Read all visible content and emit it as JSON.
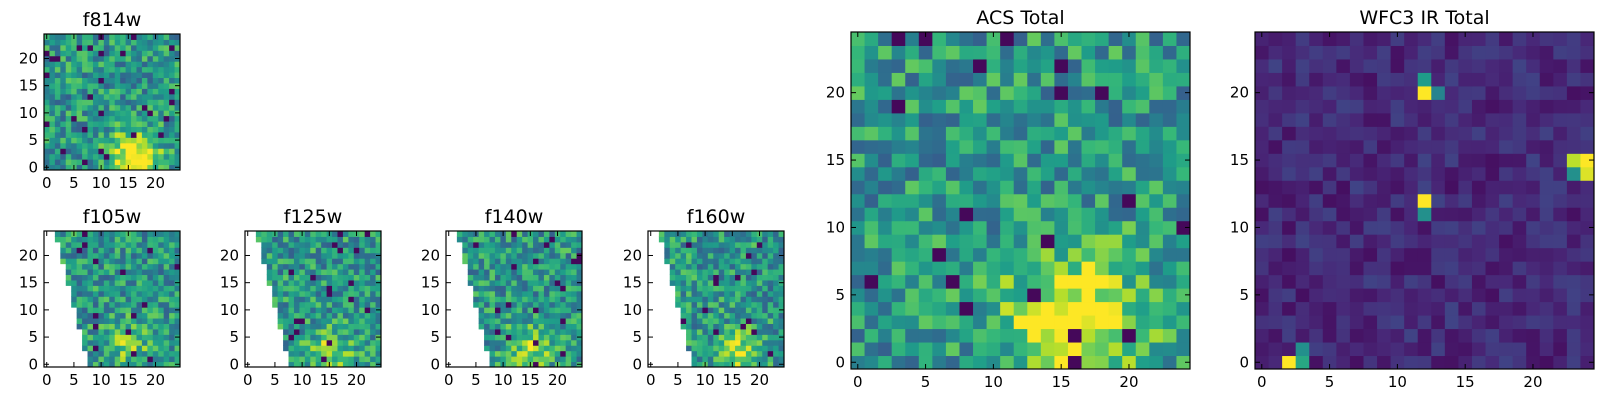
{
  "chart_data": [
    {
      "type": "heatmap",
      "title": "f814w",
      "x_ticks": [
        "0",
        "5",
        "10",
        "15",
        "20"
      ],
      "y_ticks": [
        "0",
        "5",
        "10",
        "15",
        "20"
      ],
      "xlim": [
        -0.5,
        24.5
      ],
      "ylim": [
        -0.5,
        24.5
      ],
      "size": 25,
      "cmap": "viridis",
      "blob": [
        16,
        2,
        3.2,
        0.55
      ],
      "noise_seed": 11,
      "mask": "none",
      "description": "noisy green/teal map with bright yellow blob near x=16,y=2"
    },
    {
      "type": "heatmap",
      "title": "f105w",
      "x_ticks": [
        "0",
        "5",
        "10",
        "15",
        "20"
      ],
      "y_ticks": [
        "0",
        "5",
        "10",
        "15",
        "20"
      ],
      "xlim": [
        -0.5,
        24.5
      ],
      "ylim": [
        -0.5,
        24.5
      ],
      "size": 25,
      "cmap": "viridis",
      "blob": [
        15,
        4,
        3,
        0.25
      ],
      "noise_seed": 23,
      "mask": "lower-left-wedge",
      "description": "patchy map, white blank region on the left side widening to the bottom"
    },
    {
      "type": "heatmap",
      "title": "f125w",
      "x_ticks": [
        "0",
        "5",
        "10",
        "15",
        "20"
      ],
      "y_ticks": [
        "0",
        "5",
        "10",
        "15",
        "20"
      ],
      "xlim": [
        -0.5,
        24.5
      ],
      "ylim": [
        -0.5,
        24.5
      ],
      "size": 25,
      "cmap": "viridis",
      "blob": [
        15,
        2,
        3,
        0.3
      ],
      "noise_seed": 37,
      "mask": "lower-left-wedge",
      "description": "patchy map with blank left wedge"
    },
    {
      "type": "heatmap",
      "title": "f140w",
      "x_ticks": [
        "0",
        "5",
        "10",
        "15",
        "20"
      ],
      "y_ticks": [
        "0",
        "5",
        "10",
        "15",
        "20"
      ],
      "xlim": [
        -0.5,
        24.5
      ],
      "ylim": [
        -0.5,
        24.5
      ],
      "size": 25,
      "cmap": "viridis",
      "blob": [
        15,
        3,
        3,
        0.3
      ],
      "noise_seed": 41,
      "mask": "lower-left-wedge",
      "description": "patchy map with blank left wedge"
    },
    {
      "type": "heatmap",
      "title": "f160w",
      "x_ticks": [
        "0",
        "5",
        "10",
        "15",
        "20"
      ],
      "y_ticks": [
        "0",
        "5",
        "10",
        "15",
        "20"
      ],
      "xlim": [
        -0.5,
        24.5
      ],
      "ylim": [
        -0.5,
        24.5
      ],
      "size": 25,
      "cmap": "viridis",
      "blob": [
        16,
        2,
        3,
        0.35
      ],
      "noise_seed": 53,
      "mask": "lower-left-wedge",
      "description": "patchy darker map with blank left wedge"
    },
    {
      "type": "heatmap",
      "title": "ACS Total",
      "x_ticks": [
        "0",
        "5",
        "10",
        "15",
        "20"
      ],
      "y_ticks": [
        "0",
        "5",
        "10",
        "15",
        "20"
      ],
      "xlim": [
        -0.5,
        24.5
      ],
      "ylim": [
        -0.5,
        24.5
      ],
      "size": 25,
      "cmap": "viridis",
      "blob": [
        16,
        3,
        3.5,
        0.55
      ],
      "noise_seed": 67,
      "mask": "none",
      "description": "green/teal noise with yellow concentration around x=16,y=3"
    },
    {
      "type": "heatmap",
      "title": "WFC3 IR Total",
      "x_ticks": [
        "0",
        "5",
        "10",
        "15",
        "20"
      ],
      "y_ticks": [
        "0",
        "5",
        "10",
        "15",
        "20"
      ],
      "xlim": [
        -0.5,
        24.5
      ],
      "ylim": [
        -0.5,
        24.5
      ],
      "size": 25,
      "cmap": "viridis",
      "mode": "dark",
      "noise_seed": 79,
      "mask": "none",
      "hotspots": [
        [
          2,
          0,
          1.0
        ],
        [
          3,
          0,
          0.6
        ],
        [
          3,
          1,
          0.5
        ],
        [
          12,
          20,
          1.0
        ],
        [
          12,
          21,
          0.55
        ],
        [
          13,
          20,
          0.45
        ],
        [
          12,
          12,
          1.0
        ],
        [
          12,
          11,
          0.5
        ],
        [
          24,
          15,
          1.0
        ],
        [
          23,
          15,
          0.9
        ],
        [
          24,
          14,
          0.95
        ],
        [
          23,
          14,
          0.5
        ]
      ],
      "description": "mostly dark purple map with a few bright pixels"
    }
  ]
}
